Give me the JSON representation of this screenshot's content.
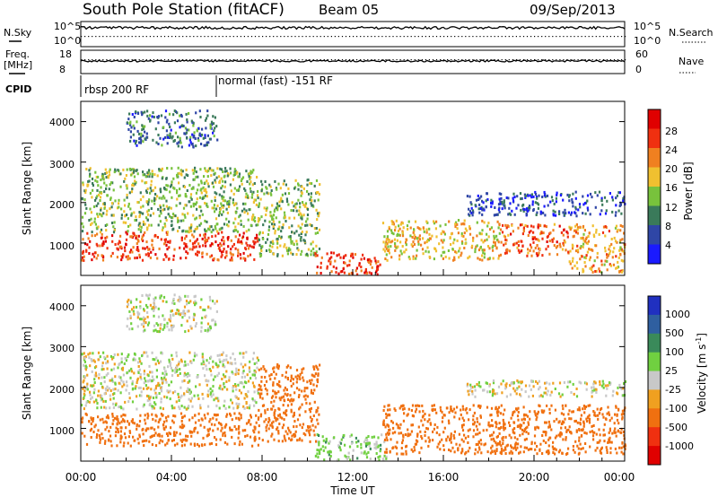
{
  "header": {
    "title": "South Pole Station (fitACF)",
    "beam": "Beam 05",
    "date": "09/Sep/2013"
  },
  "panels": {
    "nsky": {
      "label": "N.Sky",
      "ticks": [
        "10^5",
        "10^0"
      ]
    },
    "nsearch": {
      "label": "N.Search",
      "ticks": [
        "10^5",
        "10^0"
      ]
    },
    "freq": {
      "label_line1": "Freq.",
      "label_line2": "[MHz]",
      "ticks": [
        "18",
        "8"
      ]
    },
    "nave": {
      "label": "Nave",
      "ticks": [
        "60",
        "0"
      ]
    },
    "cpid": {
      "label": "CPID",
      "segments": [
        "rbsp 200 RF",
        "normal (fast) -151 RF"
      ]
    }
  },
  "power_panel": {
    "ylabel": "Slant Range [km]",
    "yticks": [
      "4000",
      "3000",
      "2000",
      "1000"
    ],
    "colorbar": {
      "label": "Power [dB]",
      "ticks": [
        "28",
        "24",
        "20",
        "16",
        "12",
        "8",
        "4"
      ],
      "colors": [
        "#1a1aff",
        "#2f46a6",
        "#3a7a5a",
        "#78c23c",
        "#f0c030",
        "#f08020",
        "#f03010",
        "#e00000"
      ]
    }
  },
  "velocity_panel": {
    "ylabel": "Slant Range [km]",
    "yticks": [
      "4000",
      "3000",
      "2000",
      "1000"
    ],
    "colorbar": {
      "label": "Velocity [m s",
      "label_sup": "-1",
      "label_close": "]",
      "ticks": [
        "1000",
        "500",
        "100",
        "25",
        "-25",
        "-100",
        "-500",
        "-1000"
      ],
      "colors": [
        "#2030c0",
        "#2f5fa0",
        "#3a8a5a",
        "#70d040",
        "#c8c8c8",
        "#f0a020",
        "#f07010",
        "#f03010",
        "#e00000"
      ]
    }
  },
  "xaxis": {
    "ticks": [
      "00:00",
      "04:00",
      "08:00",
      "12:00",
      "16:00",
      "20:00",
      "00:00"
    ],
    "label": "Time UT"
  },
  "chart_data": [
    {
      "type": "heatmap",
      "name_ref": "power",
      "quantity": "Power [dB]",
      "x_range_hours": [
        0,
        24
      ],
      "y_range_km": [
        200,
        4500
      ],
      "color_range_db": [
        0,
        32
      ],
      "scatter_regions": [
        {
          "t": [
            0.0,
            7.8
          ],
          "r": [
            600,
            1300
          ],
          "level_db": 26
        },
        {
          "t": [
            0.0,
            7.8
          ],
          "r": [
            1300,
            2900
          ],
          "level_db": 14
        },
        {
          "t": [
            2.0,
            6.0
          ],
          "r": [
            3400,
            4300
          ],
          "level_db": 8
        },
        {
          "t": [
            7.8,
            10.5
          ],
          "r": [
            700,
            2600
          ],
          "level_db": 14
        },
        {
          "t": [
            10.3,
            13.2
          ],
          "r": [
            250,
            800
          ],
          "level_db": 26
        },
        {
          "t": [
            13.3,
            18.5
          ],
          "r": [
            600,
            1600
          ],
          "level_db": 18
        },
        {
          "t": [
            18.5,
            21.5
          ],
          "r": [
            700,
            1500
          ],
          "level_db": 24
        },
        {
          "t": [
            21.5,
            24.0
          ],
          "r": [
            300,
            1500
          ],
          "level_db": 20
        },
        {
          "t": [
            17.0,
            24.0
          ],
          "r": [
            1700,
            2300
          ],
          "level_db": 6
        }
      ]
    },
    {
      "type": "heatmap",
      "name_ref": "velocity",
      "quantity": "Velocity [m s-1]",
      "x_range_hours": [
        0,
        24
      ],
      "y_range_km": [
        200,
        4500
      ],
      "scatter_regions": [
        {
          "t": [
            0.0,
            7.8
          ],
          "r": [
            600,
            1400
          ],
          "velocity": -300
        },
        {
          "t": [
            0.0,
            7.8
          ],
          "r": [
            1500,
            2900
          ],
          "velocity": 0
        },
        {
          "t": [
            2.0,
            6.0
          ],
          "r": [
            3400,
            4300
          ],
          "velocity": 0
        },
        {
          "t": [
            7.8,
            10.5
          ],
          "r": [
            700,
            2600
          ],
          "velocity": -200
        },
        {
          "t": [
            10.3,
            13.5
          ],
          "r": [
            250,
            900
          ],
          "velocity": 60
        },
        {
          "t": [
            13.3,
            24.0
          ],
          "r": [
            400,
            1600
          ],
          "velocity": -400
        },
        {
          "t": [
            17.0,
            24.0
          ],
          "r": [
            1800,
            2200
          ],
          "velocity": 0
        }
      ]
    },
    {
      "type": "line",
      "name_ref": "nsky",
      "x_range_hours": [
        0,
        24
      ],
      "approx_log_level": 4.5
    },
    {
      "type": "line",
      "name_ref": "freq",
      "x_range_hours": [
        0,
        24
      ],
      "approx_mhz": 12.5
    }
  ]
}
